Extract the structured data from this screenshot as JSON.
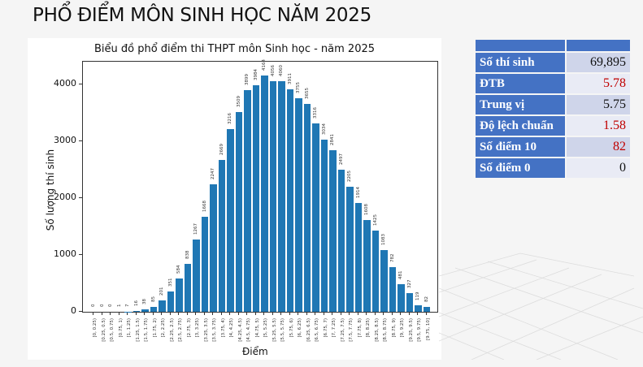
{
  "slide": {
    "title": "PHỔ ĐIỂM MÔN SINH HỌC NĂM 2025"
  },
  "stats": {
    "rows": [
      {
        "label": "Số thí sinh",
        "value": "69,895",
        "color": "#111111"
      },
      {
        "label": "ĐTB",
        "value": "5.78",
        "color": "#c00000"
      },
      {
        "label": "Trung vị",
        "value": "5.75",
        "color": "#111111"
      },
      {
        "label": "Độ lệch chuẩn",
        "value": "1.58",
        "color": "#c00000"
      },
      {
        "label": "Số điểm 10",
        "value": "82",
        "color": "#c00000"
      },
      {
        "label": "Số điểm 0",
        "value": "0",
        "color": "#111111"
      }
    ]
  },
  "chart_data": {
    "type": "bar",
    "title": "Biểu đồ phổ điểm thi THPT môn Sinh học - năm 2025",
    "xlabel": "Điểm",
    "ylabel": "Số lượng thí sinh",
    "ylim": [
      0,
      4400
    ],
    "yticks": [
      0,
      1000,
      2000,
      3000,
      4000
    ],
    "grid": false,
    "legend": null,
    "bar_color": "#1f77b4",
    "categories": [
      "[0, 0.25)",
      "[0.25, 0.5)",
      "[0.5, 0.75)",
      "[0.75, 1)",
      "[1, 1.25)",
      "[1.25, 1.5)",
      "[1.5, 1.75)",
      "[1.75, 2)",
      "[2, 2.25)",
      "[2.25, 2.5)",
      "[2.5, 2.75)",
      "[2.75, 3)",
      "[3, 3.25)",
      "[3.25, 3.5)",
      "[3.5, 3.75)",
      "[3.75, 4)",
      "[4, 4.25)",
      "[4.25, 4.5)",
      "[4.5, 4.75)",
      "[4.75, 5)",
      "[5, 5.25)",
      "[5.25, 5.5)",
      "[5.5, 5.75)",
      "[5.75, 6)",
      "[6, 6.25)",
      "[6.25, 6.5)",
      "[6.5, 6.75)",
      "[6.75, 7)",
      "[7, 7.25)",
      "[7.25, 7.5)",
      "[7.5, 7.75)",
      "[7.75, 8)",
      "[8, 8.25)",
      "[8.25, 8.5)",
      "[8.5, 8.75)",
      "[8.75, 9)",
      "[9, 9.25)",
      "[9.25, 9.5)",
      "[9.5, 9.75)",
      "[9.75, 10]"
    ],
    "values": [
      0,
      0,
      0,
      1,
      7,
      16,
      38,
      85,
      201,
      351,
      584,
      838,
      1267,
      1668,
      2247,
      2669,
      3216,
      3509,
      3899,
      3984,
      4164,
      4056,
      4060,
      3911,
      3755,
      3655,
      3316,
      3034,
      2841,
      2497,
      2205,
      1914,
      1608,
      1425,
      1083,
      782,
      481,
      327,
      119,
      82
    ]
  }
}
